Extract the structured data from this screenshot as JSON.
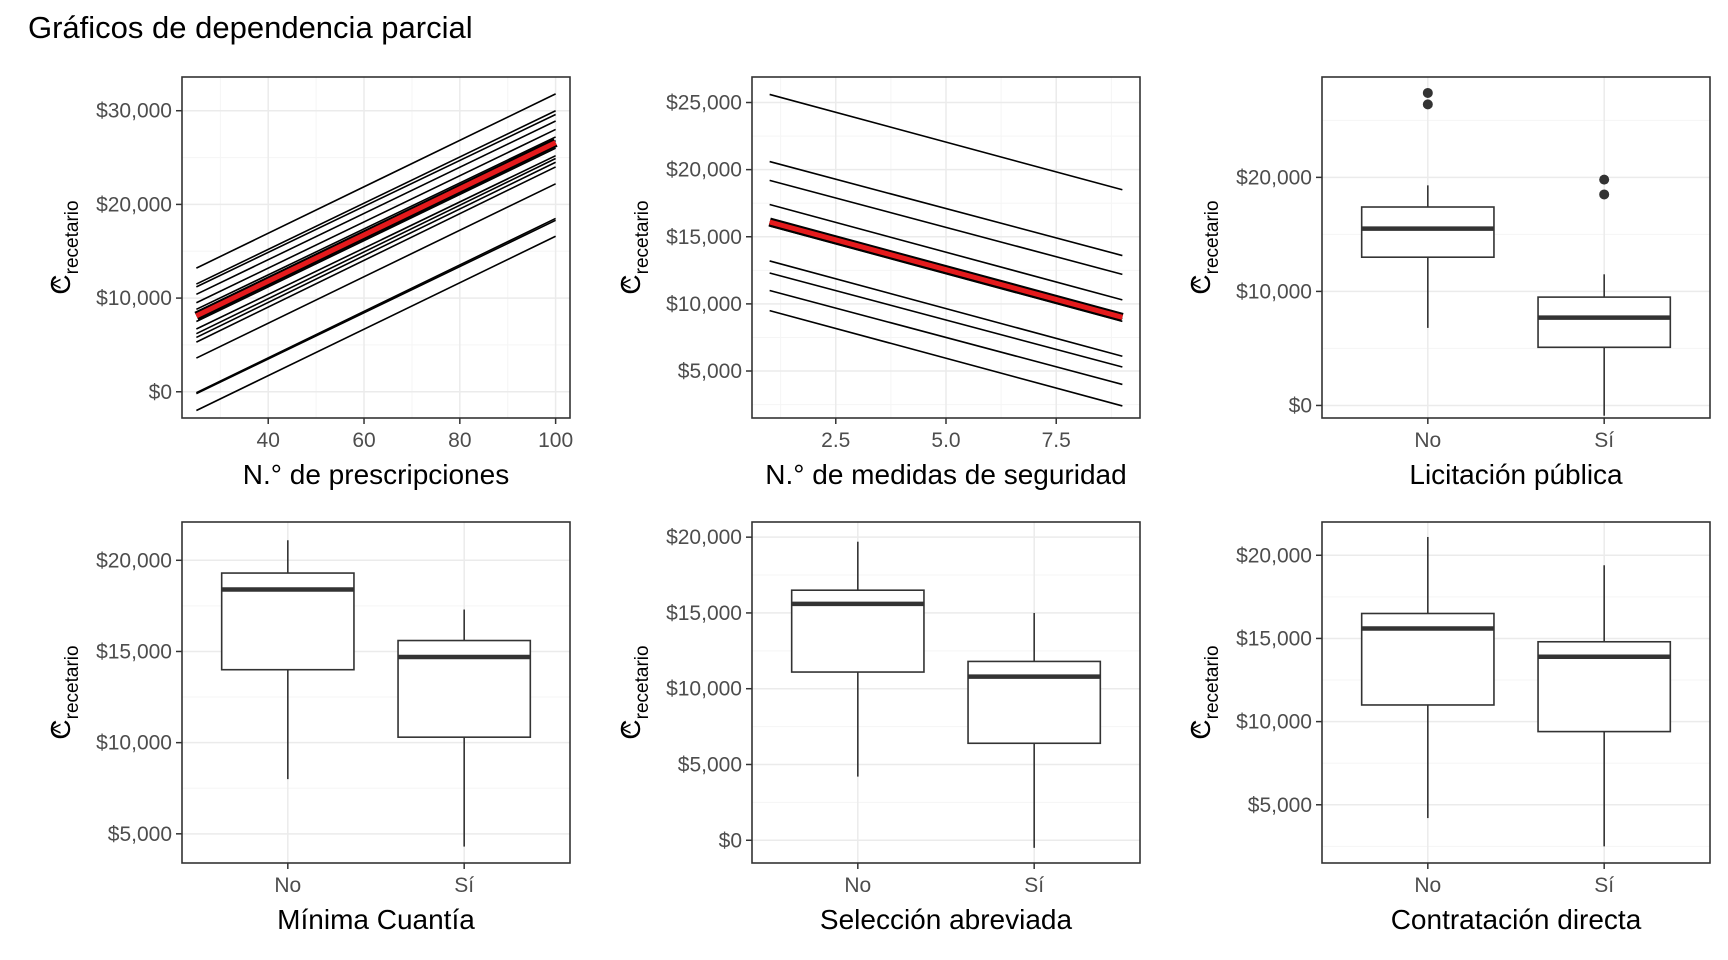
{
  "title": "Gráficos de dependencia parcial",
  "y_title": {
    "hat": "^",
    "main": "C",
    "sub": "recetario"
  },
  "colors": {
    "panel_border": "#333333",
    "grid_major": "#ebebeb",
    "grid_minor": "#f5f5f5",
    "line": "#000000",
    "highlight": "#e41a1c",
    "box_fill": "#ffffff",
    "box_stroke": "#333333"
  },
  "chart_data": [
    {
      "type": "line",
      "xlabel": "N.° de prescripciones",
      "xlim": [
        22,
        103
      ],
      "ylim": [
        -2800,
        33600
      ],
      "xticks": [
        40,
        60,
        80,
        100
      ],
      "xtick_labels": [
        "40",
        "60",
        "80",
        "100"
      ],
      "yticks": [
        0,
        10000,
        20000,
        30000
      ],
      "ytick_labels": [
        "$0",
        "$10,000",
        "$20,000",
        "$30,000"
      ],
      "x": [
        25,
        100
      ],
      "series": [
        {
          "values": [
            13200,
            31800
          ]
        },
        {
          "values": [
            11500,
            30000
          ]
        },
        {
          "values": [
            11200,
            29600
          ]
        },
        {
          "values": [
            10400,
            28900
          ]
        },
        {
          "values": [
            9500,
            28000
          ]
        },
        {
          "values": [
            8800,
            27200
          ]
        },
        {
          "values": [
            8300,
            26800
          ]
        },
        {
          "values": [
            7500,
            26000
          ]
        },
        {
          "values": [
            6700,
            25200
          ]
        },
        {
          "values": [
            6200,
            24900
          ]
        },
        {
          "values": [
            5800,
            24500
          ]
        },
        {
          "values": [
            5300,
            24000
          ]
        },
        {
          "values": [
            3600,
            22200
          ]
        },
        {
          "values": [
            -100,
            18500
          ]
        },
        {
          "values": [
            -200,
            18300
          ]
        },
        {
          "values": [
            -2000,
            16600
          ]
        }
      ],
      "average": {
        "values": [
          8100,
          26600
        ]
      }
    },
    {
      "type": "line",
      "xlabel": "N.° de medidas de seguridad",
      "xlim": [
        0.6,
        9.4
      ],
      "ylim": [
        1500,
        26900
      ],
      "xticks": [
        2.5,
        5.0,
        7.5
      ],
      "xtick_labels": [
        "2.5",
        "5.0",
        "7.5"
      ],
      "yticks": [
        5000,
        10000,
        15000,
        20000,
        25000
      ],
      "ytick_labels": [
        "$5,000",
        "$10,000",
        "$15,000",
        "$20,000",
        "$25,000"
      ],
      "x": [
        1,
        9
      ],
      "series": [
        {
          "values": [
            25600,
            18500
          ]
        },
        {
          "values": [
            20600,
            13600
          ]
        },
        {
          "values": [
            19200,
            12200
          ]
        },
        {
          "values": [
            17400,
            10300
          ]
        },
        {
          "values": [
            16000,
            8900
          ]
        },
        {
          "values": [
            15800,
            8700
          ]
        },
        {
          "values": [
            13200,
            6100
          ]
        },
        {
          "values": [
            12300,
            5300
          ]
        },
        {
          "values": [
            11000,
            4000
          ]
        },
        {
          "values": [
            9500,
            2400
          ]
        }
      ],
      "average": {
        "values": [
          16100,
          9000
        ]
      }
    },
    {
      "type": "box",
      "xlabel": "Licitación pública",
      "categories": [
        "No",
        "Sí"
      ],
      "ylim": [
        -1100,
        28800
      ],
      "yticks": [
        0,
        10000,
        20000
      ],
      "ytick_labels": [
        "$0",
        "$10,000",
        "$20,000"
      ],
      "boxes": [
        {
          "min": 6800,
          "q1": 13000,
          "median": 15500,
          "q3": 17400,
          "max": 19300,
          "outliers": [
            26400,
            27400
          ]
        },
        {
          "min": -900,
          "q1": 5100,
          "median": 7700,
          "q3": 9500,
          "max": 11500,
          "outliers": [
            18500,
            19800
          ]
        }
      ]
    },
    {
      "type": "box",
      "xlabel": "Mínima Cuantía",
      "categories": [
        "No",
        "Sí"
      ],
      "ylim": [
        3400,
        22100
      ],
      "yticks": [
        5000,
        10000,
        15000,
        20000
      ],
      "ytick_labels": [
        "$5,000",
        "$10,000",
        "$15,000",
        "$20,000"
      ],
      "boxes": [
        {
          "min": 8000,
          "q1": 14000,
          "median": 18400,
          "q3": 19300,
          "max": 21100,
          "outliers": []
        },
        {
          "min": 4300,
          "q1": 10300,
          "median": 14700,
          "q3": 15600,
          "max": 17300,
          "outliers": []
        }
      ]
    },
    {
      "type": "box",
      "xlabel": "Selección abreviada",
      "categories": [
        "No",
        "Sí"
      ],
      "ylim": [
        -1500,
        21000
      ],
      "yticks": [
        0,
        5000,
        10000,
        15000,
        20000
      ],
      "ytick_labels": [
        "$0",
        "$5,000",
        "$10,000",
        "$15,000",
        "$20,000"
      ],
      "boxes": [
        {
          "min": 4200,
          "q1": 11100,
          "median": 15600,
          "q3": 16500,
          "max": 19700,
          "outliers": []
        },
        {
          "min": -500,
          "q1": 6400,
          "median": 10800,
          "q3": 11800,
          "max": 15000,
          "outliers": []
        }
      ]
    },
    {
      "type": "box",
      "xlabel": "Contratación directa",
      "categories": [
        "No",
        "Sí"
      ],
      "ylim": [
        1500,
        22000
      ],
      "yticks": [
        5000,
        10000,
        15000,
        20000
      ],
      "ytick_labels": [
        "$5,000",
        "$10,000",
        "$15,000",
        "$20,000"
      ],
      "boxes": [
        {
          "min": 4200,
          "q1": 11000,
          "median": 15600,
          "q3": 16500,
          "max": 21100,
          "outliers": []
        },
        {
          "min": 2500,
          "q1": 9400,
          "median": 13900,
          "q3": 14800,
          "max": 19400,
          "outliers": []
        }
      ]
    }
  ]
}
